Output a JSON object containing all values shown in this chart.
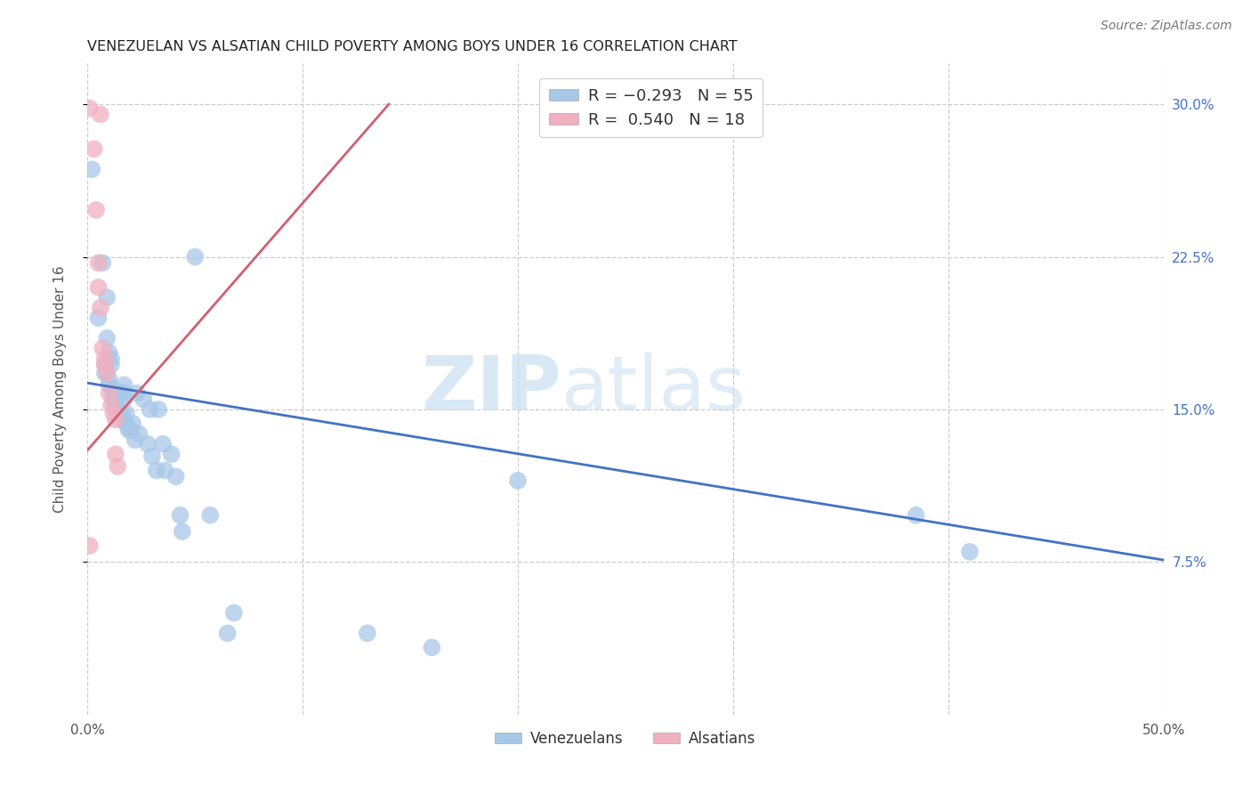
{
  "title": "VENEZUELAN VS ALSATIAN CHILD POVERTY AMONG BOYS UNDER 16 CORRELATION CHART",
  "source": "Source: ZipAtlas.com",
  "ylabel": "Child Poverty Among Boys Under 16",
  "xlim": [
    0.0,
    0.5
  ],
  "ylim": [
    0.0,
    0.32
  ],
  "xticks": [
    0.0,
    0.1,
    0.2,
    0.3,
    0.4,
    0.5
  ],
  "xticklabels": [
    "0.0%",
    "",
    "",
    "",
    "",
    "50.0%"
  ],
  "yticks": [
    0.075,
    0.15,
    0.225,
    0.3
  ],
  "yticklabels": [
    "7.5%",
    "15.0%",
    "22.5%",
    "30.0%"
  ],
  "watermark_zip": "ZIP",
  "watermark_atlas": "atlas",
  "venezuelan_color": "#a8c8e8",
  "alsatian_color": "#f0b0c0",
  "blue_line_color": "#4472c4",
  "pink_line_color": "#d06070",
  "venezuelan_scatter": [
    [
      0.002,
      0.268
    ],
    [
      0.005,
      0.195
    ],
    [
      0.007,
      0.222
    ],
    [
      0.008,
      0.168
    ],
    [
      0.008,
      0.172
    ],
    [
      0.009,
      0.205
    ],
    [
      0.009,
      0.185
    ],
    [
      0.01,
      0.178
    ],
    [
      0.01,
      0.162
    ],
    [
      0.01,
      0.165
    ],
    [
      0.011,
      0.175
    ],
    [
      0.011,
      0.172
    ],
    [
      0.012,
      0.158
    ],
    [
      0.012,
      0.16
    ],
    [
      0.012,
      0.155
    ],
    [
      0.013,
      0.152
    ],
    [
      0.013,
      0.152
    ],
    [
      0.013,
      0.155
    ],
    [
      0.014,
      0.15
    ],
    [
      0.014,
      0.148
    ],
    [
      0.015,
      0.148
    ],
    [
      0.015,
      0.158
    ],
    [
      0.016,
      0.145
    ],
    [
      0.016,
      0.148
    ],
    [
      0.017,
      0.162
    ],
    [
      0.017,
      0.158
    ],
    [
      0.017,
      0.155
    ],
    [
      0.018,
      0.148
    ],
    [
      0.018,
      0.143
    ],
    [
      0.019,
      0.14
    ],
    [
      0.02,
      0.14
    ],
    [
      0.021,
      0.143
    ],
    [
      0.022,
      0.135
    ],
    [
      0.023,
      0.158
    ],
    [
      0.024,
      0.138
    ],
    [
      0.026,
      0.155
    ],
    [
      0.028,
      0.133
    ],
    [
      0.029,
      0.15
    ],
    [
      0.03,
      0.127
    ],
    [
      0.032,
      0.12
    ],
    [
      0.033,
      0.15
    ],
    [
      0.035,
      0.133
    ],
    [
      0.036,
      0.12
    ],
    [
      0.039,
      0.128
    ],
    [
      0.041,
      0.117
    ],
    [
      0.043,
      0.098
    ],
    [
      0.044,
      0.09
    ],
    [
      0.05,
      0.225
    ],
    [
      0.057,
      0.098
    ],
    [
      0.065,
      0.04
    ],
    [
      0.068,
      0.05
    ],
    [
      0.13,
      0.04
    ],
    [
      0.16,
      0.033
    ],
    [
      0.2,
      0.115
    ],
    [
      0.385,
      0.098
    ],
    [
      0.41,
      0.08
    ]
  ],
  "alsatian_scatter": [
    [
      0.001,
      0.298
    ],
    [
      0.003,
      0.278
    ],
    [
      0.004,
      0.248
    ],
    [
      0.005,
      0.222
    ],
    [
      0.005,
      0.21
    ],
    [
      0.006,
      0.2
    ],
    [
      0.006,
      0.295
    ],
    [
      0.007,
      0.18
    ],
    [
      0.008,
      0.175
    ],
    [
      0.008,
      0.172
    ],
    [
      0.009,
      0.168
    ],
    [
      0.01,
      0.158
    ],
    [
      0.011,
      0.152
    ],
    [
      0.012,
      0.148
    ],
    [
      0.013,
      0.145
    ],
    [
      0.013,
      0.128
    ],
    [
      0.014,
      0.122
    ],
    [
      0.001,
      0.083
    ]
  ],
  "blue_trendline": [
    [
      0.0,
      0.163
    ],
    [
      0.5,
      0.076
    ]
  ],
  "pink_trendline": [
    [
      0.0,
      0.13
    ],
    [
      0.14,
      0.3
    ]
  ]
}
